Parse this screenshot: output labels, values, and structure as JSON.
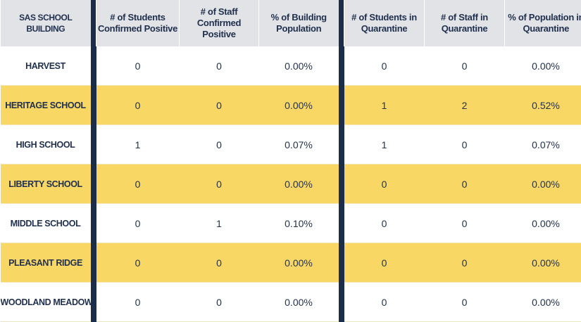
{
  "table": {
    "headers": [
      "SAS SCHOOL BUILDING",
      "# of Students Confirmed Positive",
      "# of Staff Confirmed Positive",
      "% of Building Population",
      "# of Students in Quarantine",
      "# of Staff in Quarantine",
      "% of Population in Quarantine"
    ],
    "rows": [
      [
        "HARVEST",
        "0",
        "0",
        "0.00%",
        "0",
        "0",
        "0.00%"
      ],
      [
        "HERITAGE SCHOOL",
        "0",
        "0",
        "0.00%",
        "1",
        "2",
        "0.52%"
      ],
      [
        "HIGH SCHOOL",
        "1",
        "0",
        "0.07%",
        "1",
        "0",
        "0.07%"
      ],
      [
        "LIBERTY SCHOOL",
        "0",
        "0",
        "0.00%",
        "0",
        "0",
        "0.00%"
      ],
      [
        "MIDDLE SCHOOL",
        "0",
        "1",
        "0.10%",
        "0",
        "0",
        "0.00%"
      ],
      [
        "PLEASANT RIDGE",
        "0",
        "0",
        "0.00%",
        "0",
        "0",
        "0.00%"
      ],
      [
        "WOODLAND MEADOWS",
        "0",
        "0",
        "0.00%",
        "0",
        "0",
        "0.00%"
      ]
    ]
  },
  "colors": {
    "header_bg": "#e2e3e6",
    "highlight_row": "#f8d765",
    "separator": "#1c2d4b",
    "text": "#1f2f4d"
  }
}
